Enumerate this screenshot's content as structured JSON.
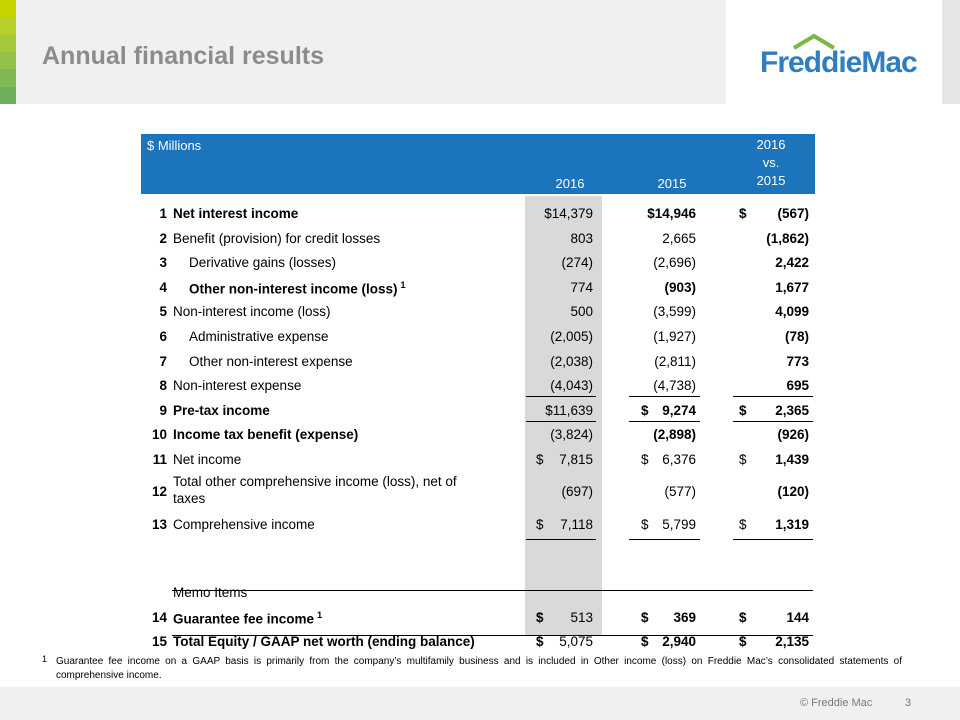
{
  "slide": {
    "title": "Annual financial results",
    "logo_text": "FreddieMac",
    "copyright": "© Freddie Mac",
    "page_number": "3",
    "accent_colors": [
      "#c8d400",
      "#b6cf2a",
      "#a4c83c",
      "#92c04b",
      "#80b854",
      "#6eae5c"
    ],
    "brand_color": "#1c75bc"
  },
  "table": {
    "header": {
      "unit": "$ Millions",
      "col_2016": "2016",
      "col_2015": "2015",
      "col_vs_line1": "2016",
      "col_vs_line2": "vs.",
      "col_vs_line3": "2015"
    },
    "rows": [
      {
        "num": "1",
        "label": "Net interest income",
        "v2016": "$14,379",
        "v2015": "$14,946",
        "d3": "$",
        "vdiff": "(567)"
      },
      {
        "num": "2",
        "label": "Benefit (provision) for credit losses",
        "v2016": "803",
        "v2015": "2,665",
        "vdiff": "(1,862)"
      },
      {
        "num": "3",
        "label": "Derivative gains (losses)",
        "v2016": "(274)",
        "v2015": "(2,696)",
        "vdiff": "2,422"
      },
      {
        "num": "4",
        "label": "Other non-interest income (loss)",
        "sup": "1",
        "v2016": "774",
        "v2015": "(903)",
        "vdiff": "1,677"
      },
      {
        "num": "5",
        "label": "Non-interest income (loss)",
        "v2016": "500",
        "v2015": "(3,599)",
        "vdiff": "4,099"
      },
      {
        "num": "6",
        "label": "Administrative expense",
        "v2016": "(2,005)",
        "v2015": "(1,927)",
        "vdiff": "(78)"
      },
      {
        "num": "7",
        "label": "Other non-interest expense",
        "v2016": "(2,038)",
        "v2015": "(2,811)",
        "vdiff": "773"
      },
      {
        "num": "8",
        "label": "Non-interest expense",
        "v2016": "(4,043)",
        "v2015": "(4,738)",
        "vdiff": "695"
      },
      {
        "num": "9",
        "label": "Pre-tax income",
        "v2016": "$11,639",
        "d2": "$",
        "v2015": "9,274",
        "d3": "$",
        "vdiff": "2,365"
      },
      {
        "num": "10",
        "label": "Income tax benefit (expense)",
        "v2016": "(3,824)",
        "v2015": "(2,898)",
        "vdiff": "(926)"
      },
      {
        "num": "11",
        "label": "Net income",
        "d1": "$",
        "v2016": "7,815",
        "d2": "$",
        "v2015": "6,376",
        "d3": "$",
        "vdiff": "1,439"
      },
      {
        "num": "12",
        "label": "Total other comprehensive income (loss), net of taxes",
        "v2016": "(697)",
        "v2015": "(577)",
        "vdiff": "(120)"
      },
      {
        "num": "13",
        "label": "Comprehensive income",
        "d1": "$",
        "v2016": "7,118",
        "d2": "$",
        "v2015": "5,799",
        "d3": "$",
        "vdiff": "1,319"
      }
    ],
    "memo_label": "Memo Items",
    "memo_rows": [
      {
        "num": "14",
        "label": "Guarantee fee income",
        "sup": "1",
        "d1": "$",
        "v2016": "513",
        "d2": "$",
        "v2015": "369",
        "d3": "$",
        "vdiff": "144"
      },
      {
        "num": "15",
        "label": "Total Equity / GAAP net worth (ending balance)",
        "d1": "$",
        "v2016": "5,075",
        "d2": "$",
        "v2015": "2,940",
        "d3": "$",
        "vdiff": "2,135"
      }
    ]
  },
  "footnote": {
    "marker": "1",
    "text": "Guarantee fee income on a GAAP basis is primarily from the company’s multifamily business and is included in Other income (loss) on Freddie Mac’s consolidated statements of comprehensive income."
  }
}
